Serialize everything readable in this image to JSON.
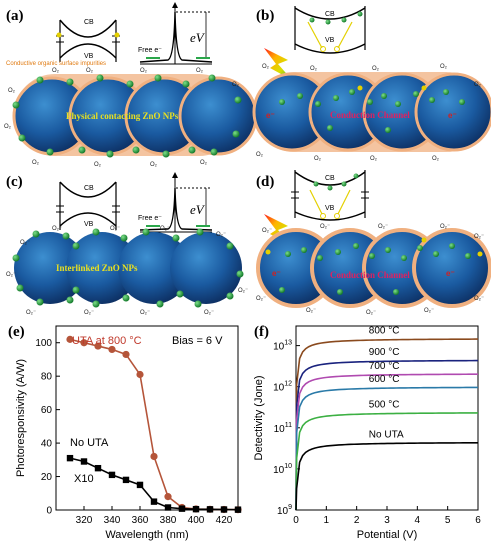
{
  "panels": {
    "a": {
      "label": "(a)",
      "cb": "CB",
      "vb": "VB",
      "free_e": "Free e⁻",
      "ev": "eV",
      "impurities_label": "Conductive organic surface impurities",
      "np_label": "Physical contacting ZnO NPs"
    },
    "b": {
      "label": "(b)",
      "cb": "CB",
      "vb": "VB",
      "channel_label": "Conduction Channel"
    },
    "c": {
      "label": "(c)",
      "cb": "CB",
      "vb": "VB",
      "free_e": "Free e⁻",
      "ev": "eV",
      "np_label": "Interlinked ZnO NPs"
    },
    "d": {
      "label": "(d)",
      "cb": "CB",
      "vb": "VB",
      "channel_label": "Conduction Channel"
    },
    "o2": "O₂",
    "o2m": "O₂⁻",
    "eminus": "e⁻"
  },
  "chart_data": [
    {
      "type": "line",
      "panel": "(e)",
      "xlabel": "Wavelength (nm)",
      "ylabel": "Photoresponsivity (A/W)",
      "xlim": [
        300,
        430
      ],
      "ylim": [
        0,
        110
      ],
      "xticks": [
        320,
        340,
        360,
        380,
        400,
        420
      ],
      "yticks": [
        0,
        20,
        40,
        60,
        80,
        100
      ],
      "annotations": {
        "bias": "Bias = 6 V",
        "x10": "X10"
      },
      "series": [
        {
          "name": "UTA at 800 °C",
          "color": "#b5553a",
          "marker": "circle",
          "x": [
            310,
            320,
            330,
            340,
            350,
            360,
            370,
            380,
            390,
            400,
            410,
            420,
            430
          ],
          "y": [
            102,
            100,
            98,
            96,
            93,
            81,
            32,
            8,
            1.5,
            0.6,
            0.4,
            0.3,
            0.2
          ]
        },
        {
          "name": "No UTA",
          "color": "#000000",
          "marker": "square",
          "x": [
            310,
            320,
            330,
            340,
            350,
            360,
            370,
            380,
            390,
            400,
            410,
            420,
            430
          ],
          "y": [
            31,
            29,
            25,
            21,
            18,
            15,
            5,
            1.5,
            0.8,
            0.5,
            0.4,
            0.3,
            0.2
          ]
        }
      ]
    },
    {
      "type": "line",
      "panel": "(f)",
      "xlabel": "Potential (V)",
      "ylabel": "Detectivity (Jone)",
      "xlim": [
        0,
        6
      ],
      "ylog": true,
      "ylim": [
        1000000000.0,
        30000000000000.0
      ],
      "xticks": [
        0,
        1,
        2,
        3,
        4,
        5,
        6
      ],
      "ytick_exponents": [
        9,
        10,
        11,
        12,
        13
      ],
      "series": [
        {
          "name": "800 °C",
          "color": "#8a4a1e",
          "asymptote": 15000000000000.0
        },
        {
          "name": "900 °C",
          "color": "#1a237e",
          "asymptote": 4500000000000.0
        },
        {
          "name": "700 °C",
          "color": "#b04ab0",
          "asymptote": 2100000000000.0
        },
        {
          "name": "600 °C",
          "color": "#2a7aa8",
          "asymptote": 1000000000000.0
        },
        {
          "name": "500 °C",
          "color": "#3cb043",
          "asymptote": 240000000000.0
        },
        {
          "name": "No UTA",
          "color": "#000000",
          "asymptote": 45000000000.0
        }
      ]
    }
  ]
}
